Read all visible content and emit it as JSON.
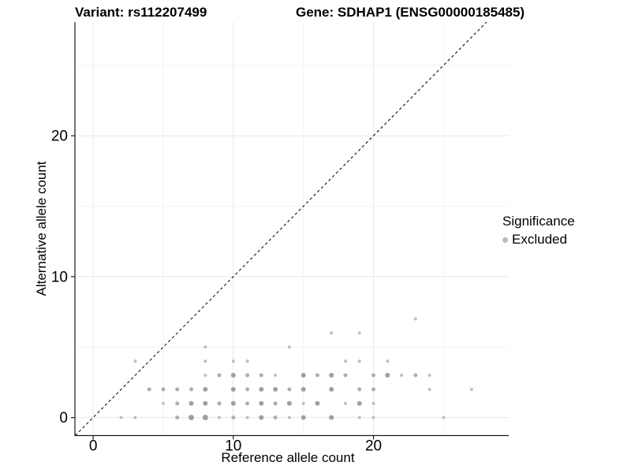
{
  "header": {
    "variant_title": "Variant: rs112207499",
    "gene_title": "Gene: SDHAP1 (ENSG00000185485)"
  },
  "legend": {
    "title": "Significance",
    "items": [
      {
        "label": "Excluded",
        "color": "#b9b9b9"
      }
    ]
  },
  "chart_data": {
    "type": "scatter",
    "title_left": "Variant: rs112207499",
    "title_right": "Gene: SDHAP1 (ENSG00000185485)",
    "xlabel": "Reference allele count",
    "ylabel": "Alternative allele count",
    "xlim": [
      -1.3,
      29.65
    ],
    "ylim": [
      -1.28,
      28.07
    ],
    "x_ticks": [
      0,
      10,
      20
    ],
    "y_ticks": [
      0,
      10,
      20
    ],
    "x_minor_ticks": [
      5,
      15,
      25
    ],
    "y_minor_ticks": [
      5,
      15,
      25
    ],
    "grid": true,
    "legend_position": "right",
    "identity_line": {
      "style": "dashed",
      "from": [
        -1.28,
        -1.28
      ],
      "to": [
        28.07,
        28.07
      ],
      "color": "#111111"
    },
    "colors": {
      "point_small": "#bfbfbf",
      "point_medium": "#aeaeae",
      "point_large": "#a0a0a0",
      "grid_major": "#e7e7e7",
      "grid_minor": "#f2f2f2",
      "axis": "#1a1a1a"
    },
    "series": [
      {
        "name": "Excluded",
        "color": "#b9b9b9",
        "points": [
          [
            2,
            0,
            2
          ],
          [
            3,
            0,
            2
          ],
          [
            6,
            0,
            2.5
          ],
          [
            7,
            0,
            3.5
          ],
          [
            8,
            0,
            3.5
          ],
          [
            9,
            0,
            2
          ],
          [
            10,
            0,
            2.5
          ],
          [
            11,
            0,
            2
          ],
          [
            12,
            0,
            3
          ],
          [
            13,
            0,
            2.5
          ],
          [
            14,
            0,
            2
          ],
          [
            15,
            0,
            3
          ],
          [
            17,
            0,
            3
          ],
          [
            19,
            0,
            2
          ],
          [
            20,
            0,
            2
          ],
          [
            25,
            0,
            2
          ],
          [
            5,
            1,
            2
          ],
          [
            6,
            1,
            2.5
          ],
          [
            7,
            1,
            3
          ],
          [
            8,
            1,
            3
          ],
          [
            9,
            1,
            2.5
          ],
          [
            10,
            1,
            3
          ],
          [
            11,
            1,
            2.5
          ],
          [
            12,
            1,
            3
          ],
          [
            13,
            1,
            2.5
          ],
          [
            14,
            1,
            3
          ],
          [
            15,
            1,
            2
          ],
          [
            16,
            1,
            3
          ],
          [
            18,
            1,
            2
          ],
          [
            19,
            1,
            3
          ],
          [
            20,
            1,
            2
          ],
          [
            4,
            2,
            2.5
          ],
          [
            5,
            2,
            2.5
          ],
          [
            6,
            2,
            2.5
          ],
          [
            7,
            2,
            2.5
          ],
          [
            8,
            2,
            3
          ],
          [
            10,
            2,
            3
          ],
          [
            11,
            2,
            2.5
          ],
          [
            12,
            2,
            3
          ],
          [
            13,
            2,
            3
          ],
          [
            14,
            2,
            2.5
          ],
          [
            15,
            2,
            3
          ],
          [
            17,
            2,
            3
          ],
          [
            19,
            2,
            2.5
          ],
          [
            20,
            2,
            2.5
          ],
          [
            24,
            2,
            2
          ],
          [
            27,
            2,
            2
          ],
          [
            8,
            3,
            2
          ],
          [
            9,
            3,
            2.5
          ],
          [
            10,
            3,
            3
          ],
          [
            11,
            3,
            2.5
          ],
          [
            12,
            3,
            2.5
          ],
          [
            13,
            3,
            2
          ],
          [
            15,
            3,
            3
          ],
          [
            16,
            3,
            2.5
          ],
          [
            17,
            3,
            3
          ],
          [
            18,
            3,
            2.5
          ],
          [
            20,
            3,
            2.5
          ],
          [
            21,
            3,
            3
          ],
          [
            22,
            3,
            2
          ],
          [
            23,
            3,
            2.5
          ],
          [
            24,
            3,
            2
          ],
          [
            3,
            4,
            2
          ],
          [
            8,
            4,
            2
          ],
          [
            10,
            4,
            2
          ],
          [
            11,
            4,
            2
          ],
          [
            18,
            4,
            2
          ],
          [
            19,
            4,
            2
          ],
          [
            21,
            4,
            2
          ],
          [
            8,
            5,
            2
          ],
          [
            14,
            5,
            2
          ],
          [
            17,
            6,
            2
          ],
          [
            19,
            6,
            2
          ],
          [
            23,
            7,
            2
          ]
        ]
      }
    ]
  }
}
